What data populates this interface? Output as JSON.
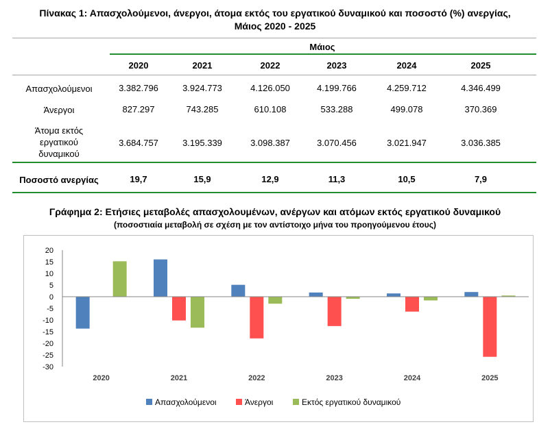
{
  "table": {
    "title_line1": "Πίνακας 1: Απασχολούμενοι, άνεργοι, άτομα εκτός του εργατικού δυναμικού και ποσοστό (%) ανεργίας,",
    "title_line2": "Μάιος 2020 - 2025",
    "month_header": "Μάιος",
    "years": [
      "2020",
      "2021",
      "2022",
      "2023",
      "2024",
      "2025"
    ],
    "rows": [
      {
        "label_lines": [
          "Απασχολούμενοι"
        ],
        "values": [
          "3.382.796",
          "3.924.773",
          "4.126.050",
          "4.199.766",
          "4.259.712",
          "4.346.499"
        ]
      },
      {
        "label_lines": [
          "Άνεργοι"
        ],
        "values": [
          "827.297",
          "743.285",
          "610.108",
          "533.288",
          "499.078",
          "370.369"
        ]
      },
      {
        "label_lines": [
          "Άτομα εκτός",
          "εργατικού",
          "δυναμικού"
        ],
        "values": [
          "3.684.757",
          "3.195.339",
          "3.098.387",
          "3.070.456",
          "3.021.947",
          "3.036.385"
        ]
      }
    ],
    "rate_row": {
      "label": "Ποσοστό ανεργίας",
      "values": [
        "19,7",
        "15,9",
        "12,9",
        "11,3",
        "10,5",
        "7,9"
      ]
    }
  },
  "chart_title_line1": "Γράφημα 2: Ετήσιες μεταβολές απασχολουμένων, ανέργων και ατόμων εκτός εργατικού δυναμικού",
  "chart_title_line2": "(ποσοστιαία μεταβολή σε σχέση με τον αντίστοιχο μήνα του προηγούμενου έτους)",
  "chart_data": {
    "type": "bar",
    "title": "Γράφημα 2: Ετήσιες μεταβολές απασχολουμένων, ανέργων και ατόμων εκτός εργατικού δυναμικού",
    "subtitle": "(ποσοστιαία μεταβολή σε σχέση με τον αντίστοιχο μήνα του προηγούμενου έτους)",
    "categories": [
      "2020",
      "2021",
      "2022",
      "2023",
      "2024",
      "2025"
    ],
    "series": [
      {
        "name": "Απασχολούμενοι",
        "color": "#4f81bd",
        "values": [
          -13.7,
          16.0,
          5.1,
          1.8,
          1.4,
          2.0
        ]
      },
      {
        "name": "Άνεργοι",
        "color": "#ff5050",
        "values": [
          null,
          -10.2,
          -17.9,
          -12.6,
          -6.4,
          -25.8
        ]
      },
      {
        "name": "Εκτός εργατικού δυναμικού",
        "color": "#9bbb59",
        "values": [
          15.2,
          -13.3,
          -3.0,
          -0.9,
          -1.6,
          0.5
        ]
      }
    ],
    "ylim": [
      -30,
      20
    ],
    "yticks": [
      20,
      15,
      10,
      5,
      0,
      -5,
      -10,
      -15,
      -20,
      -25,
      -30
    ],
    "xlabel": "",
    "ylabel": "",
    "legend_position": "bottom",
    "grid": false
  }
}
